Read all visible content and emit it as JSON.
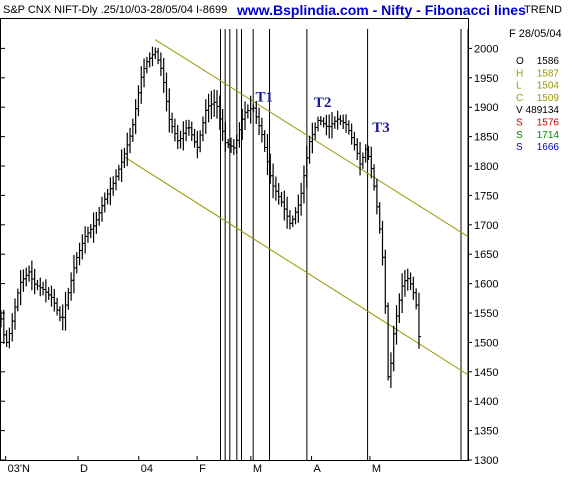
{
  "header": {
    "left": "S&P CNX NIFT-Dly .25/10/03-28/05/04  I-8699",
    "site": "www.Bsplindia.com - Nifty - Fibonacci lines",
    "right": "TREND"
  },
  "sidebar": {
    "date": "F 28/05/04",
    "ohlc": [
      {
        "key": "O",
        "value": "1586",
        "color": "#000000"
      },
      {
        "key": "H",
        "value": "1587",
        "color": "#999900"
      },
      {
        "key": "L",
        "value": "1504",
        "color": "#999900"
      },
      {
        "key": "C",
        "value": "1509",
        "color": "#999900"
      },
      {
        "key": "V",
        "value": "489134",
        "color": "#000000"
      },
      {
        "key": "S",
        "value": "1576",
        "color": "#cc0000"
      },
      {
        "key": "S",
        "value": "1714",
        "color": "#008800"
      },
      {
        "key": "S",
        "value": "1666",
        "color": "#0000cc"
      }
    ]
  },
  "chart_data": {
    "type": "bar",
    "ylim": [
      1300,
      2050
    ],
    "yticks": [
      1300,
      1350,
      1400,
      1450,
      1500,
      1550,
      1600,
      1650,
      1700,
      1750,
      1800,
      1850,
      1900,
      1950,
      2000
    ],
    "x_labels": [
      {
        "label": "03'N",
        "pos": 0.01
      },
      {
        "label": "D",
        "pos": 0.165
      },
      {
        "label": "04",
        "pos": 0.295
      },
      {
        "label": "F",
        "pos": 0.42
      },
      {
        "label": "M",
        "pos": 0.535
      },
      {
        "label": "A",
        "pos": 0.665
      },
      {
        "label": "M",
        "pos": 0.79
      }
    ],
    "annotations": [
      {
        "label": "T1",
        "x": 0.545,
        "y": 1910
      },
      {
        "label": "T2",
        "x": 0.67,
        "y": 1900
      },
      {
        "label": "T3",
        "x": 0.795,
        "y": 1858
      }
    ],
    "trendlines": [
      {
        "name": "upper-channel",
        "x1": 0.33,
        "y1": 2015,
        "x2": 1.0,
        "y2": 1680
      },
      {
        "name": "lower-channel",
        "x1": 0.265,
        "y1": 1815,
        "x2": 1.0,
        "y2": 1445
      }
    ],
    "vertical_lines": [
      0.47,
      0.48,
      0.49,
      0.505,
      0.515,
      0.54,
      0.575,
      0.655,
      0.785,
      0.985,
      1.0
    ],
    "price_path": [
      [
        0.0,
        1540
      ],
      [
        0.01,
        1495
      ],
      [
        0.02,
        1520
      ],
      [
        0.04,
        1600
      ],
      [
        0.06,
        1620
      ],
      [
        0.07,
        1600
      ],
      [
        0.09,
        1590
      ],
      [
        0.11,
        1575
      ],
      [
        0.13,
        1535
      ],
      [
        0.14,
        1570
      ],
      [
        0.16,
        1640
      ],
      [
        0.18,
        1680
      ],
      [
        0.2,
        1700
      ],
      [
        0.22,
        1740
      ],
      [
        0.24,
        1770
      ],
      [
        0.26,
        1810
      ],
      [
        0.28,
        1860
      ],
      [
        0.3,
        1950
      ],
      [
        0.31,
        1975
      ],
      [
        0.33,
        1995
      ],
      [
        0.345,
        1960
      ],
      [
        0.36,
        1880
      ],
      [
        0.38,
        1840
      ],
      [
        0.4,
        1870
      ],
      [
        0.42,
        1830
      ],
      [
        0.44,
        1900
      ],
      [
        0.46,
        1910
      ],
      [
        0.48,
        1840
      ],
      [
        0.5,
        1830
      ],
      [
        0.52,
        1890
      ],
      [
        0.54,
        1900
      ],
      [
        0.56,
        1850
      ],
      [
        0.58,
        1770
      ],
      [
        0.6,
        1740
      ],
      [
        0.62,
        1700
      ],
      [
        0.64,
        1740
      ],
      [
        0.66,
        1840
      ],
      [
        0.68,
        1880
      ],
      [
        0.7,
        1865
      ],
      [
        0.72,
        1880
      ],
      [
        0.74,
        1870
      ],
      [
        0.76,
        1830
      ],
      [
        0.77,
        1800
      ],
      [
        0.78,
        1830
      ],
      [
        0.79,
        1810
      ],
      [
        0.8,
        1760
      ],
      [
        0.81,
        1700
      ],
      [
        0.82,
        1620
      ],
      [
        0.83,
        1420
      ],
      [
        0.84,
        1510
      ],
      [
        0.85,
        1560
      ],
      [
        0.86,
        1600
      ],
      [
        0.87,
        1610
      ],
      [
        0.88,
        1595
      ],
      [
        0.89,
        1560
      ],
      [
        0.895,
        1510
      ]
    ],
    "bar_color": "#000000",
    "trendline_color": "#999900",
    "grid": false,
    "legend": "none"
  }
}
